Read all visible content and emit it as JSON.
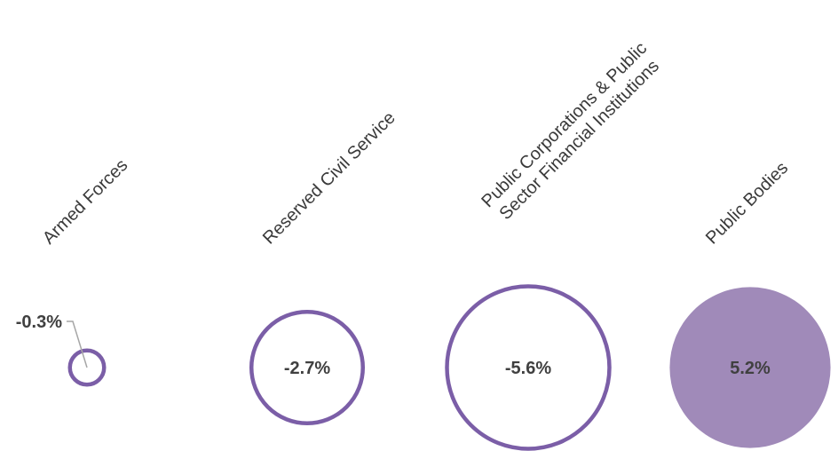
{
  "chart_data": {
    "type": "bubble",
    "colors": {
      "outline": "#7b5ea7",
      "fill_positive": "#a08ab9",
      "leader": "#a6a6a6"
    },
    "categories": [
      {
        "label_lines": [
          "Armed Forces"
        ],
        "value": -0.3,
        "value_label": "-0.3%"
      },
      {
        "label_lines": [
          "Reserved Civil Service"
        ],
        "value": -2.7,
        "value_label": "-2.7%"
      },
      {
        "label_lines": [
          "Public Corporations & Public",
          "Sector Financial Institutions"
        ],
        "value": -5.6,
        "value_label": "-5.6%"
      },
      {
        "label_lines": [
          "Public Bodies"
        ],
        "value": 5.2,
        "value_label": "5.2%"
      }
    ]
  }
}
